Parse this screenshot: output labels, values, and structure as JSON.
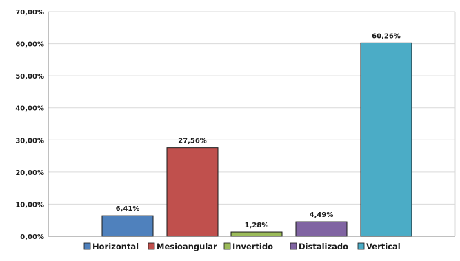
{
  "chart_data": {
    "type": "bar",
    "categories": [
      "Horizontal",
      "Mesioangular",
      "Invertido",
      "Distalizado",
      "Vertical"
    ],
    "values": [
      6.41,
      27.56,
      1.28,
      4.49,
      60.26
    ],
    "data_labels": [
      "6,41%",
      "27,56%",
      "1,28%",
      "4,49%",
      "60,26%"
    ],
    "colors": [
      "#4F81BD",
      "#C0504D",
      "#9BBB59",
      "#8064A2",
      "#4BACC6"
    ],
    "ylim": [
      0,
      70
    ],
    "yticks": [
      0,
      10,
      20,
      30,
      40,
      50,
      60,
      70
    ],
    "ytick_labels": [
      "0,00%",
      "10,00%",
      "20,00%",
      "30,00%",
      "40,00%",
      "50,00%",
      "60,00%",
      "70,00%"
    ],
    "grid": true,
    "legend_position": "bottom",
    "title": "",
    "xlabel": "",
    "ylabel": ""
  }
}
